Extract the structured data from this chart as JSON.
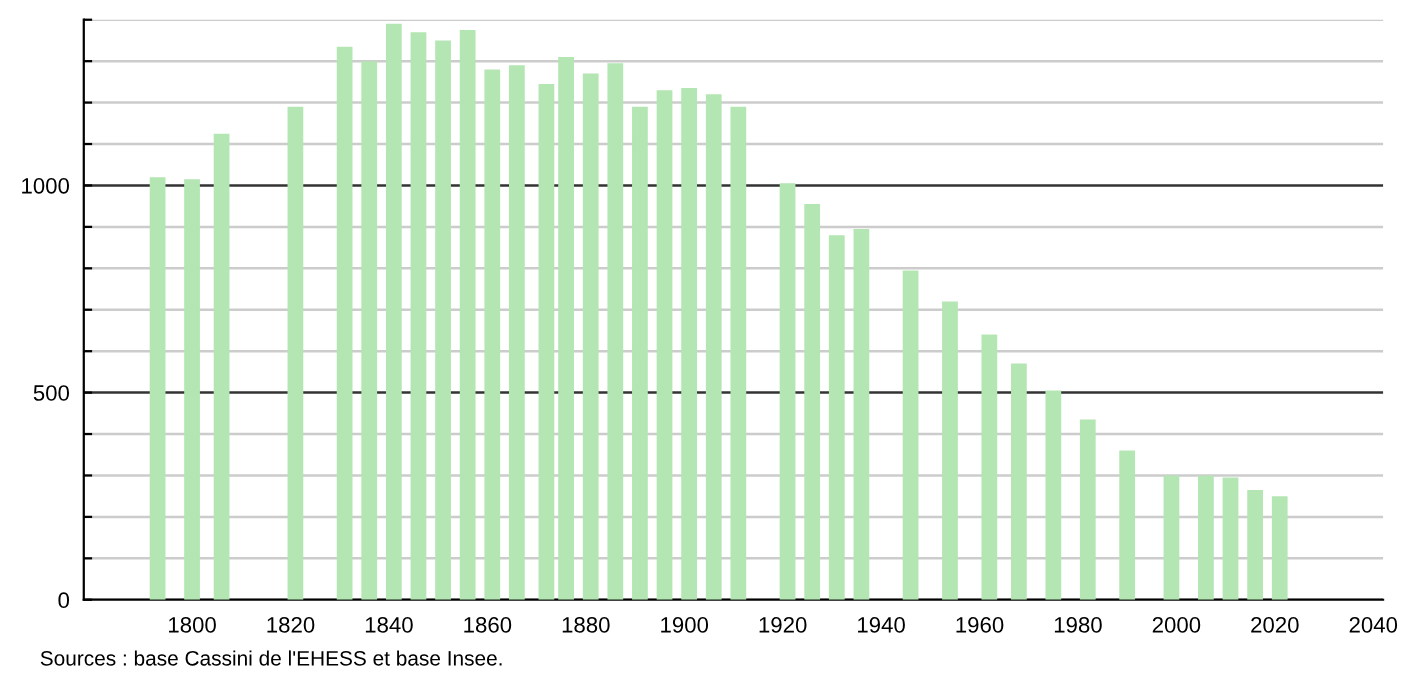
{
  "chart_data": {
    "type": "bar",
    "annotations": [
      "Sources : base Cassini de l'EHESS et base Insee."
    ],
    "x": [
      1793,
      1800,
      1806,
      1821,
      1831,
      1836,
      1841,
      1846,
      1851,
      1856,
      1861,
      1866,
      1872,
      1876,
      1881,
      1886,
      1891,
      1896,
      1901,
      1906,
      1911,
      1921,
      1926,
      1931,
      1936,
      1946,
      1954,
      1962,
      1968,
      1975,
      1982,
      1990,
      1999,
      2006,
      2011,
      2016,
      2021
    ],
    "values": [
      1020,
      1015,
      1125,
      1190,
      1335,
      1300,
      1390,
      1370,
      1350,
      1375,
      1280,
      1290,
      1245,
      1310,
      1270,
      1295,
      1190,
      1230,
      1235,
      1220,
      1190,
      1005,
      955,
      880,
      895,
      795,
      720,
      640,
      570,
      505,
      435,
      360,
      300,
      300,
      295,
      265,
      250
    ],
    "color": "#b3e6b3",
    "xlim": [
      1778,
      2042
    ],
    "xticks": [
      1800,
      1820,
      1840,
      1860,
      1880,
      1900,
      1920,
      1940,
      1960,
      1980,
      2000,
      2020,
      2040
    ],
    "ylim": [
      0,
      1400
    ],
    "yticks": [
      0,
      {
        "value": 100,
        "label": null
      },
      {
        "value": 200,
        "label": null
      },
      {
        "value": 300,
        "label": null
      },
      {
        "value": 400,
        "label": null
      },
      500,
      {
        "value": 600,
        "label": null
      },
      {
        "value": 700,
        "label": null
      },
      {
        "value": 800,
        "label": null
      },
      {
        "value": 900,
        "label": null
      },
      1000,
      {
        "value": 1100,
        "label": null
      },
      {
        "value": 1200,
        "label": null
      },
      {
        "value": 1300,
        "label": null
      },
      {
        "value": 1400,
        "label": null
      }
    ],
    "grid": "y"
  }
}
